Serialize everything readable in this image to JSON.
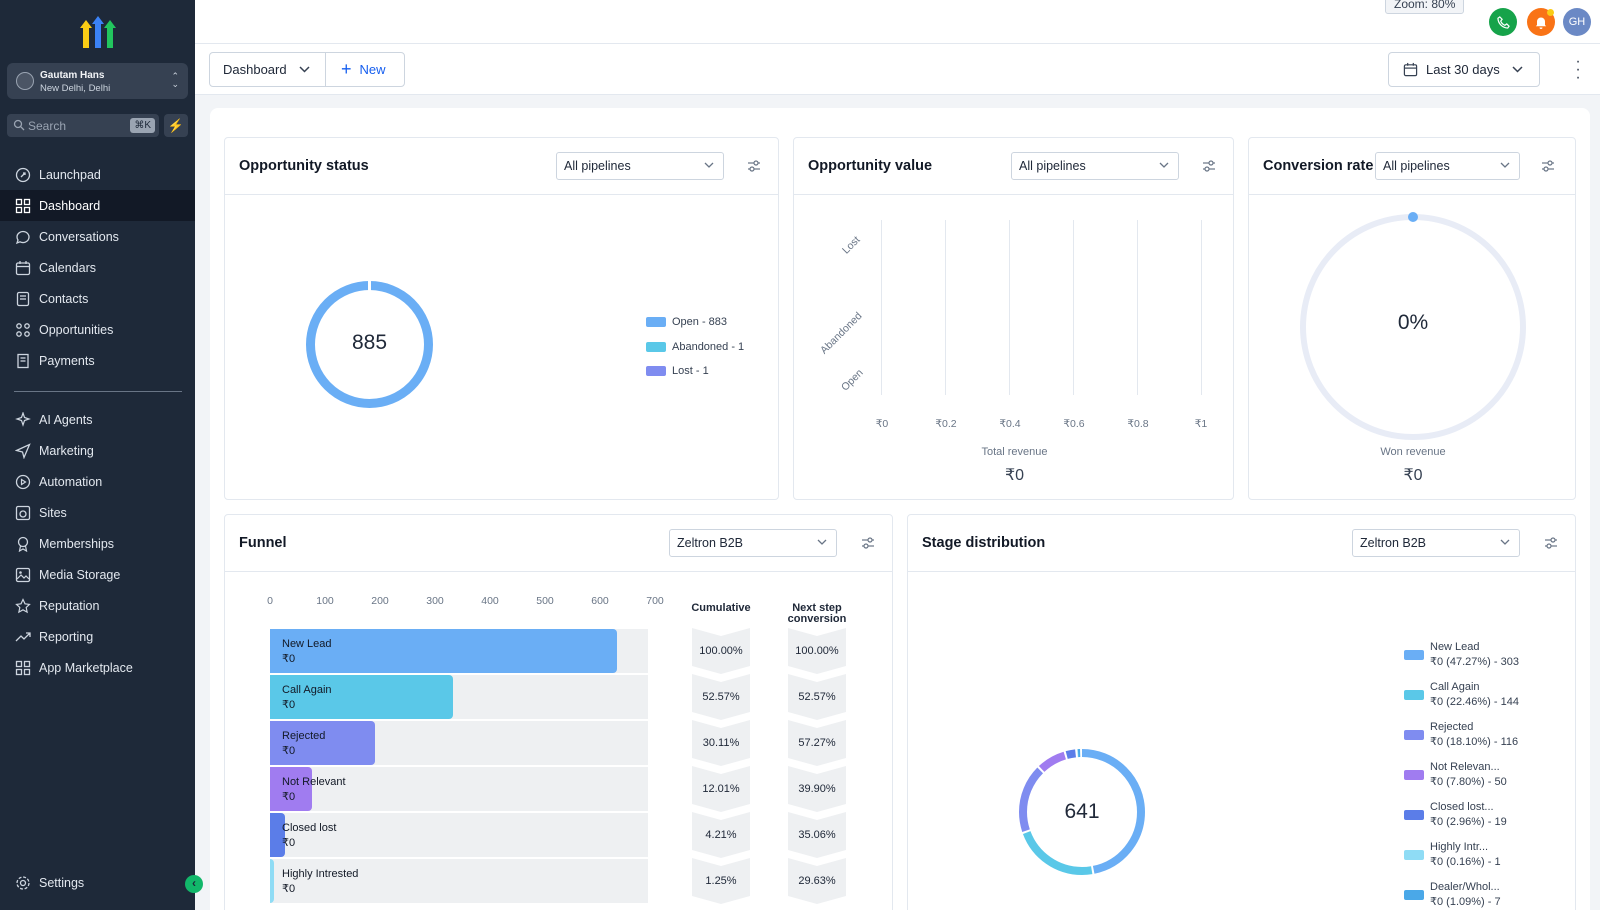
{
  "sidebar": {
    "account": {
      "name": "Gautam Hans",
      "location": "New Delhi, Delhi"
    },
    "search": {
      "placeholder": "Search",
      "shortcut": "⌘K"
    },
    "items": [
      {
        "label": "Launchpad",
        "icon": "rocket-icon"
      },
      {
        "label": "Dashboard",
        "icon": "grid-icon",
        "active": true
      },
      {
        "label": "Conversations",
        "icon": "chat-icon"
      },
      {
        "label": "Calendars",
        "icon": "calendar-icon"
      },
      {
        "label": "Contacts",
        "icon": "contacts-icon"
      },
      {
        "label": "Opportunities",
        "icon": "opportunities-icon"
      },
      {
        "label": "Payments",
        "icon": "payments-icon"
      },
      {
        "label": "AI Agents",
        "icon": "sparkle-icon"
      },
      {
        "label": "Marketing",
        "icon": "send-icon"
      },
      {
        "label": "Automation",
        "icon": "automation-icon"
      },
      {
        "label": "Sites",
        "icon": "sites-icon"
      },
      {
        "label": "Memberships",
        "icon": "membership-icon"
      },
      {
        "label": "Media Storage",
        "icon": "image-icon"
      },
      {
        "label": "Reputation",
        "icon": "star-icon"
      },
      {
        "label": "Reporting",
        "icon": "trend-icon"
      },
      {
        "label": "App Marketplace",
        "icon": "apps-icon"
      }
    ],
    "settings": {
      "label": "Settings",
      "icon": "gear-icon"
    }
  },
  "topbar": {
    "zoom": "Zoom: 80%",
    "user_initials": "GH"
  },
  "toolbar": {
    "dashboard_label": "Dashboard",
    "new_label": "New",
    "range_label": "Last 30 days"
  },
  "colors": {
    "open": "#6aaef5",
    "abandoned": "#5ac8e8",
    "lost": "#7f8cf0",
    "accent": "#155eef"
  },
  "opportunity_status": {
    "title": "Opportunity status",
    "pipeline": "All pipelines",
    "total": "885",
    "legend": [
      "Open - 883",
      "Abandoned - 1",
      "Lost - 1"
    ]
  },
  "opportunity_value": {
    "title": "Opportunity value",
    "pipeline": "All pipelines",
    "y_labels": [
      "Lost",
      "Abandoned",
      "Open"
    ],
    "x_ticks": [
      "₹0",
      "₹0.2",
      "₹0.4",
      "₹0.6",
      "₹0.8",
      "₹1"
    ],
    "caption": "Total revenue",
    "value": "₹0"
  },
  "conversion_rate": {
    "title": "Conversion rate",
    "pipeline": "All pipelines",
    "percent": "0%",
    "caption": "Won revenue",
    "value": "₹0"
  },
  "funnel": {
    "title": "Funnel",
    "pipeline": "Zeltron B2B",
    "x_ticks": [
      "0",
      "100",
      "200",
      "300",
      "400",
      "500",
      "600",
      "700"
    ],
    "x_max": 700,
    "cumulative_header": "Cumulative",
    "next_header_1": "Next step",
    "next_header_2": "conversion",
    "rows": [
      {
        "stage": "New Lead",
        "value": "₹0",
        "count": 643,
        "color": "#6aaef5",
        "cumulative": "100.00%",
        "next": "100.00%"
      },
      {
        "stage": "Call Again",
        "value": "₹0",
        "count": 338,
        "color": "#5ac8e8",
        "cumulative": "52.57%",
        "next": "52.57%"
      },
      {
        "stage": "Rejected",
        "value": "₹0",
        "count": 194,
        "color": "#7f8cf0",
        "cumulative": "30.11%",
        "next": "57.27%"
      },
      {
        "stage": "Not Relevant",
        "value": "₹0",
        "count": 77,
        "color": "#a07cf0",
        "cumulative": "12.01%",
        "next": "39.90%"
      },
      {
        "stage": "Closed lost",
        "value": "₹0",
        "count": 27,
        "color": "#5b7de8",
        "cumulative": "4.21%",
        "next": "35.06%"
      },
      {
        "stage": "Highly Intrested",
        "value": "₹0",
        "count": 8,
        "color": "#8fdcf5",
        "cumulative": "1.25%",
        "next": "29.63%"
      }
    ]
  },
  "stage_distribution": {
    "title": "Stage distribution",
    "pipeline": "Zeltron B2B",
    "total": "641",
    "items": [
      {
        "name": "New Lead",
        "detail": "₹0 (47.27%) - 303",
        "percent": 47.27,
        "color": "#6aaef5"
      },
      {
        "name": "Call Again",
        "detail": "₹0 (22.46%) - 144",
        "percent": 22.46,
        "color": "#5ac8e8"
      },
      {
        "name": "Rejected",
        "detail": "₹0 (18.10%) - 116",
        "percent": 18.1,
        "color": "#7f8cf0"
      },
      {
        "name": "Not Relevan...",
        "detail": "₹0 (7.80%) - 50",
        "percent": 7.8,
        "color": "#a07cf0"
      },
      {
        "name": "Closed lost...",
        "detail": "₹0 (2.96%) - 19",
        "percent": 2.96,
        "color": "#5b7de8"
      },
      {
        "name": "Highly Intr...",
        "detail": "₹0 (0.16%) - 1",
        "percent": 0.16,
        "color": "#8fdcf5"
      },
      {
        "name": "Dealer/Whol...",
        "detail": "₹0 (1.09%) - 7",
        "percent": 1.09,
        "color": "#4aa8e8"
      }
    ]
  }
}
